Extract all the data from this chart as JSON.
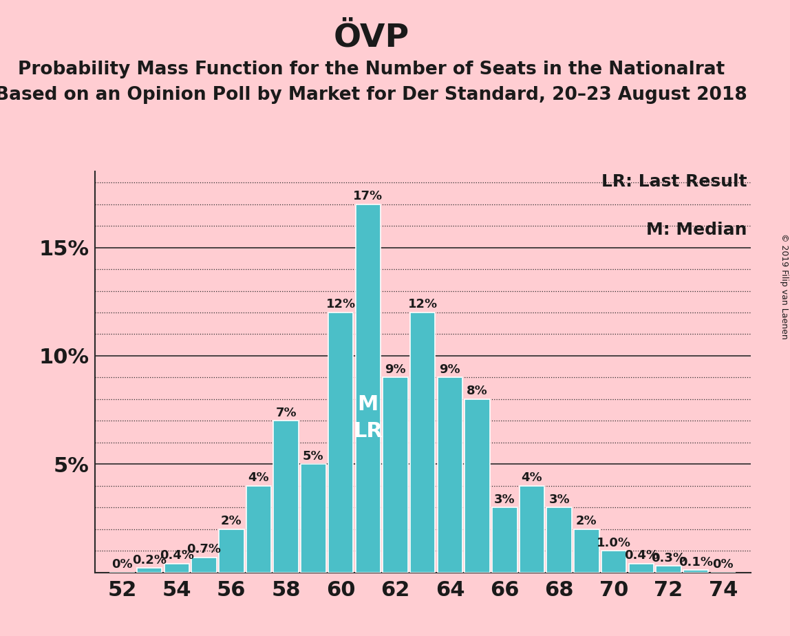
{
  "title": "ÖVP",
  "subtitle1": "Probability Mass Function for the Number of Seats in the Nationalrat",
  "subtitle2": "Based on an Opinion Poll by Market for Der Standard, 20–23 August 2018",
  "legend_lr": "LR: Last Result",
  "legend_m": "M: Median",
  "copyright": "© 2019 Filip van Laenen",
  "background_color": "#FFCDD2",
  "bar_color": "#4BBFC8",
  "bar_edge_color": "#FFFFFF",
  "seats": [
    52,
    53,
    54,
    55,
    56,
    57,
    58,
    59,
    60,
    61,
    62,
    63,
    64,
    65,
    66,
    67,
    68,
    69,
    70,
    71,
    72,
    73,
    74
  ],
  "probabilities": [
    0.0,
    0.002,
    0.004,
    0.007,
    0.02,
    0.04,
    0.07,
    0.05,
    0.12,
    0.17,
    0.09,
    0.12,
    0.09,
    0.08,
    0.03,
    0.04,
    0.03,
    0.02,
    0.01,
    0.004,
    0.003,
    0.001,
    0.0
  ],
  "labels": [
    "0%",
    "0.2%",
    "0.4%",
    "0.7%",
    "2%",
    "4%",
    "7%",
    "5%",
    "12%",
    "17%",
    "9%",
    "12%",
    "9%",
    "8%",
    "3%",
    "4%",
    "3%",
    "2%",
    "1.0%",
    "0.4%",
    "0.3%",
    "0.1%",
    "0%"
  ],
  "median_seat": 61,
  "lr_seat": 61,
  "major_yticks": [
    0.05,
    0.1,
    0.15
  ],
  "major_ytick_labels": [
    "5%",
    "10%",
    "15%"
  ],
  "minor_ytick_step": 0.01,
  "xlim": [
    51.0,
    75.0
  ],
  "ylim": [
    0,
    0.185
  ],
  "title_fontsize": 34,
  "subtitle_fontsize": 19,
  "bar_label_fontsize": 13,
  "axis_tick_fontsize": 22,
  "legend_fontsize": 18,
  "ml_label_fontsize": 22,
  "copyright_fontsize": 9
}
